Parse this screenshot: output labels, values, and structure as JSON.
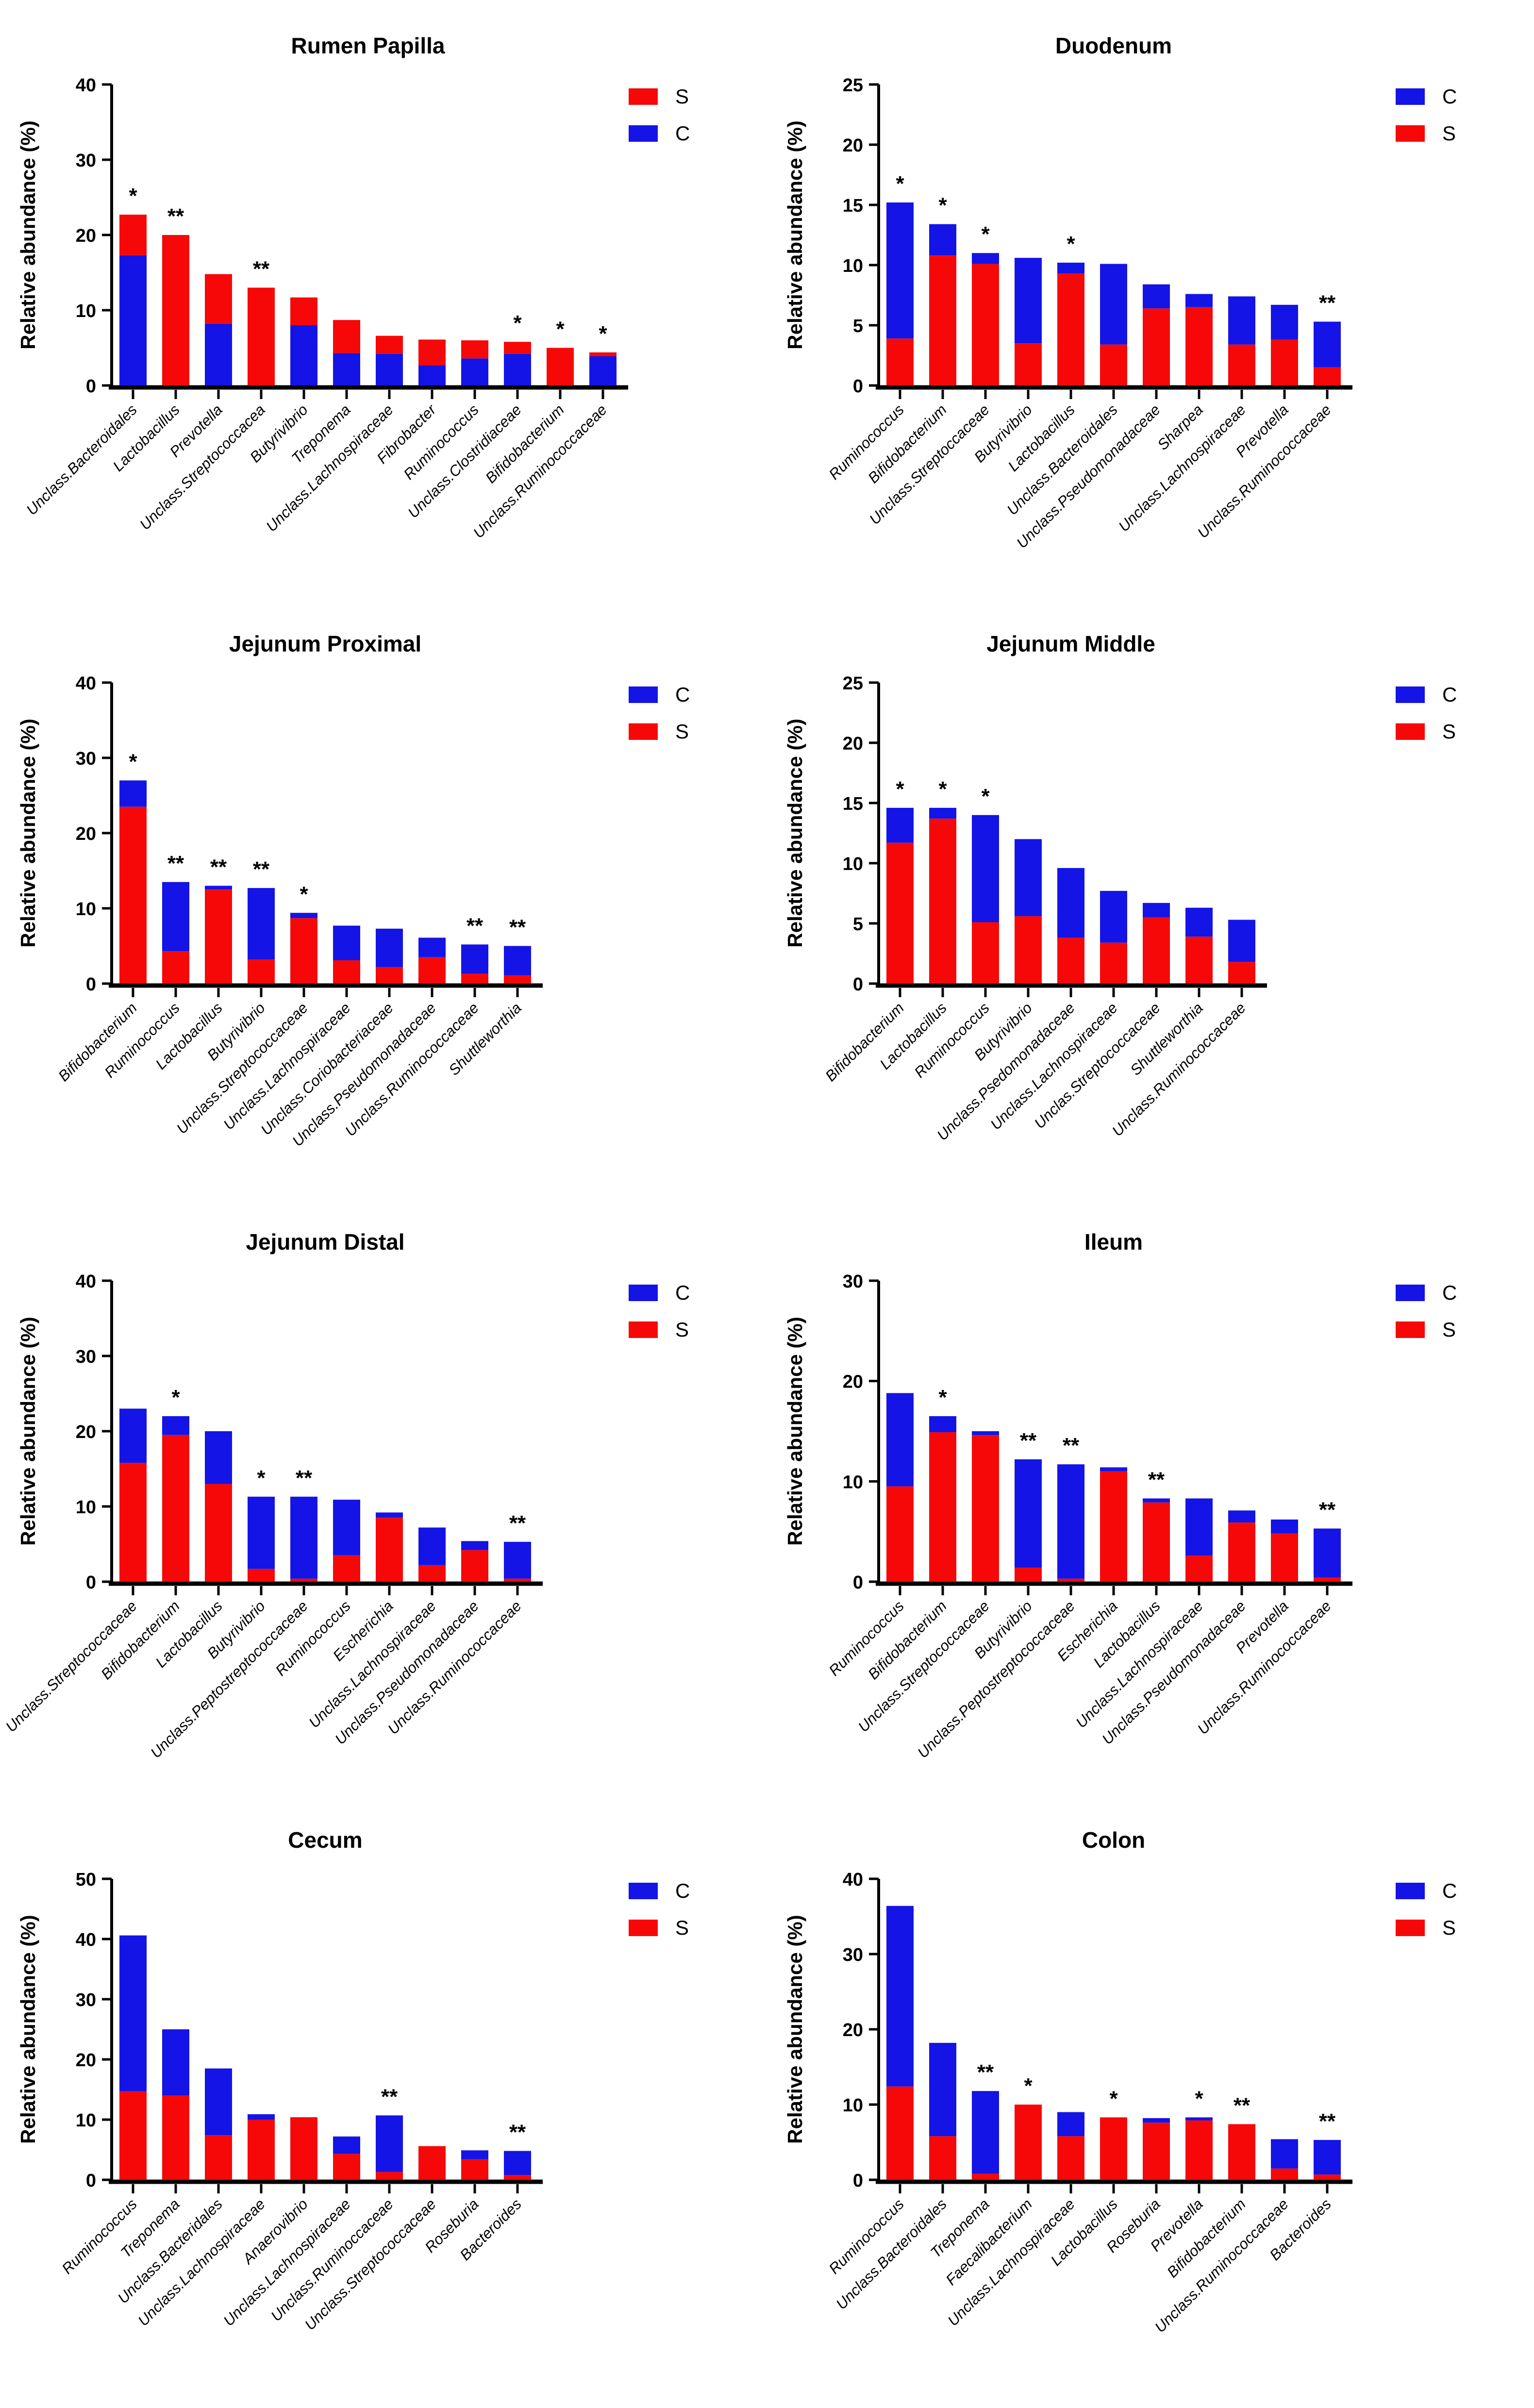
{
  "page": {
    "background": "#ffffff"
  },
  "colors": {
    "C": "#1414e6",
    "S": "#f70808",
    "axis": "#000000"
  },
  "chart_data": [
    {
      "type": "bar",
      "title": "Rumen Papilla",
      "ylabel": "Relative abundance (%)",
      "ylim": [
        0,
        40
      ],
      "yticks": [
        0,
        10,
        20,
        30,
        40
      ],
      "grid": false,
      "legend_position": "top-right",
      "legend": [
        "S",
        "C"
      ],
      "categories": [
        "Unclass.Bacteroidales",
        "Lactobacillus",
        "Prevotella",
        "Unclass.Streptococcacea",
        "Butyrivibrio",
        "Treponema",
        "Unclass.Lachnospiraceae",
        "Fibrobacter",
        "Ruminococcus",
        "Unclass.Clostridiaceae",
        "Bifidobacterium",
        "Unclass.Ruminococcaceae"
      ],
      "series": [
        {
          "name": "C",
          "values": [
            17.3,
            0,
            8.2,
            0,
            8.0,
            4.3,
            4.2,
            2.7,
            3.6,
            4.2,
            0,
            3.9
          ]
        },
        {
          "name": "S",
          "values": [
            5.4,
            20.0,
            6.6,
            13.0,
            3.7,
            4.4,
            2.4,
            3.4,
            2.4,
            1.6,
            5.0,
            0.5
          ]
        }
      ],
      "totals": [
        22.7,
        20.0,
        14.8,
        13.0,
        11.7,
        8.7,
        6.6,
        6.1,
        6.0,
        5.8,
        5.0,
        4.4
      ],
      "significance": [
        "*",
        "**",
        "",
        "**",
        "",
        "",
        "",
        "",
        "",
        "*",
        "*",
        "*"
      ]
    },
    {
      "type": "bar",
      "title": "Duodenum",
      "ylabel": "Relative abundance (%)",
      "ylim": [
        0,
        25
      ],
      "yticks": [
        0,
        5,
        10,
        15,
        20,
        25
      ],
      "grid": false,
      "legend_position": "top-right",
      "legend": [
        "C",
        "S"
      ],
      "categories": [
        "Ruminococcus",
        "Bifidobacterium",
        "Unclass.Streptoccaceae",
        "Butyrivibrio",
        "Lactobacillus",
        "Unclass.Bacteroidales",
        "Unclass.Pseudomonadaceae",
        "Sharpea",
        "Unclass.Lachnospiraceae",
        "Prevotella",
        "Unclass.Ruminococcaceae"
      ],
      "series": [
        {
          "name": "S",
          "values": [
            3.9,
            10.8,
            10.1,
            3.5,
            9.3,
            3.4,
            6.4,
            6.5,
            3.4,
            3.8,
            1.5
          ]
        },
        {
          "name": "C",
          "values": [
            11.3,
            2.6,
            0.9,
            7.1,
            0.9,
            6.7,
            2.0,
            1.1,
            4.0,
            2.9,
            3.8
          ]
        }
      ],
      "totals": [
        15.2,
        13.4,
        11.0,
        10.6,
        10.2,
        10.1,
        8.4,
        7.6,
        7.4,
        6.7,
        5.3
      ],
      "significance": [
        "*",
        "*",
        "*",
        "",
        "*",
        "",
        "",
        "",
        "",
        "",
        "**"
      ]
    },
    {
      "type": "bar",
      "title": "Jejunum Proximal",
      "ylabel": "Relative abundance (%)",
      "ylim": [
        0,
        40
      ],
      "yticks": [
        0,
        10,
        20,
        30,
        40
      ],
      "grid": false,
      "legend_position": "top-right",
      "legend": [
        "C",
        "S"
      ],
      "categories": [
        "Bifidobacterium",
        "Ruminococcus",
        "Lactobacillus",
        "Butyrivibrio",
        "Unclass.Streptococcaceae",
        "Unclass.Lachnospiraceae",
        "Unclass.Coriobacteriaceae",
        "Unclass.Pseudomonadaceae",
        "Unclass.Ruminococcaceae",
        "Shuttleworthia"
      ],
      "series": [
        {
          "name": "S",
          "values": [
            23.5,
            4.3,
            12.5,
            3.2,
            8.7,
            3.1,
            2.2,
            3.5,
            1.3,
            1.1
          ]
        },
        {
          "name": "C",
          "values": [
            3.5,
            9.2,
            0.5,
            9.5,
            0.7,
            4.6,
            5.1,
            2.6,
            3.9,
            3.9
          ]
        }
      ],
      "totals": [
        27.0,
        13.5,
        13.0,
        12.7,
        9.4,
        7.7,
        7.3,
        6.1,
        5.2,
        5.0
      ],
      "significance": [
        "*",
        "**",
        "**",
        "**",
        "*",
        "",
        "",
        "",
        "**",
        "**"
      ]
    },
    {
      "type": "bar",
      "title": "Jejunum Middle",
      "ylabel": "Relative abundance (%)",
      "ylim": [
        0,
        25
      ],
      "yticks": [
        0,
        5,
        10,
        15,
        20,
        25
      ],
      "grid": false,
      "legend_position": "top-right",
      "legend": [
        "C",
        "S"
      ],
      "categories": [
        "Bifidobacterium",
        "Lactobacillus",
        "Ruminococcus",
        "Butyrivibrio",
        "Unclass.Psedomonadaceae",
        "Unclass.Lachnospiraceae",
        "Unclas.Streptococcaceae",
        "Shuttleworthia",
        "Unclass.Ruminococcaceae"
      ],
      "series": [
        {
          "name": "S",
          "values": [
            11.7,
            13.7,
            5.1,
            5.6,
            3.8,
            3.4,
            5.5,
            3.9,
            1.8
          ]
        },
        {
          "name": "C",
          "values": [
            2.9,
            0.9,
            8.9,
            6.4,
            5.8,
            4.3,
            1.2,
            2.4,
            3.5
          ]
        }
      ],
      "totals": [
        14.6,
        14.6,
        14.0,
        12.0,
        9.6,
        7.7,
        6.7,
        6.3,
        5.3
      ],
      "significance": [
        "*",
        "*",
        "*",
        "",
        "",
        "",
        "",
        "",
        ""
      ]
    },
    {
      "type": "bar",
      "title": "Jejunum Distal",
      "ylabel": "Relative abundance (%)",
      "ylim": [
        0,
        40
      ],
      "yticks": [
        0,
        10,
        20,
        30,
        40
      ],
      "grid": false,
      "legend_position": "top-right",
      "legend": [
        "C",
        "S"
      ],
      "categories": [
        "Unclass.Streptococcaceae",
        "Bifidobacterium",
        "Lactobacillus",
        "Butyrivibrio",
        "Unclass.Peptostreptococcaceae",
        "Ruminococcus",
        "Escherichia",
        "Unclass.Lachnospiraceae",
        "Unclass.Pseudomonadaceae",
        "Unclass.Ruminococcaceae"
      ],
      "series": [
        {
          "name": "S",
          "values": [
            15.8,
            19.5,
            13.0,
            1.7,
            0.4,
            3.5,
            8.5,
            2.2,
            4.2,
            0.4
          ]
        },
        {
          "name": "C",
          "values": [
            7.2,
            2.5,
            7.0,
            9.6,
            10.9,
            7.4,
            0.7,
            5.0,
            1.2,
            4.9
          ]
        }
      ],
      "totals": [
        23.0,
        22.0,
        20.0,
        11.3,
        11.3,
        10.9,
        9.2,
        7.2,
        5.4,
        5.3
      ],
      "significance": [
        "",
        "*",
        "",
        "*",
        "**",
        "",
        "",
        "",
        "",
        "**"
      ]
    },
    {
      "type": "bar",
      "title": "Ileum",
      "ylabel": "Relative abundance (%)",
      "ylim": [
        0,
        30
      ],
      "yticks": [
        0,
        10,
        20,
        30
      ],
      "grid": false,
      "legend_position": "top-right",
      "legend": [
        "C",
        "S"
      ],
      "categories": [
        "Ruminococcus",
        "Bifidobacterium",
        "Unclass.Streptococcaceae",
        "Butyrivibrio",
        "Unclass.Peptostreptococcaceae",
        "Escherichia",
        "Lactobacillus",
        "Unclass.Lachnospiraceae",
        "Unclass.Pseudomonadaceae",
        "Prevotella",
        "Unclass.Ruminococcaceae"
      ],
      "series": [
        {
          "name": "S",
          "values": [
            9.5,
            14.9,
            14.6,
            1.4,
            0.3,
            11.0,
            7.9,
            2.6,
            5.9,
            4.8,
            0.4
          ]
        },
        {
          "name": "C",
          "values": [
            9.3,
            1.6,
            0.4,
            10.8,
            11.4,
            0.4,
            0.4,
            5.7,
            1.2,
            1.4,
            4.9
          ]
        }
      ],
      "totals": [
        18.8,
        16.5,
        15.0,
        12.2,
        11.7,
        11.4,
        8.3,
        8.3,
        7.1,
        6.2,
        5.3
      ],
      "significance": [
        "",
        "*",
        "",
        "**",
        "**",
        "",
        "**",
        "",
        "",
        "",
        "**"
      ]
    },
    {
      "type": "bar",
      "title": "Cecum",
      "ylabel": "Relative abundance (%)",
      "ylim": [
        0,
        50
      ],
      "yticks": [
        0,
        10,
        20,
        30,
        40,
        50
      ],
      "grid": false,
      "legend_position": "top-right",
      "legend": [
        "C",
        "S"
      ],
      "categories": [
        "Ruminococcus",
        "Treponema",
        "Unclass.Bacteridales",
        "Unclass.Lachnospiraceae",
        "Anaerovibrio",
        "Unclass.Lachnospiraceae",
        "Unclass.Ruminoccaceae",
        "Unclass.Streptococcaceae",
        "Roseburia",
        "Bacteroides"
      ],
      "series": [
        {
          "name": "S",
          "values": [
            14.7,
            14.0,
            7.4,
            10.0,
            10.4,
            4.3,
            1.3,
            5.6,
            3.4,
            0.8
          ]
        },
        {
          "name": "C",
          "values": [
            25.9,
            11.0,
            11.1,
            0.9,
            0,
            2.9,
            9.4,
            0,
            1.5,
            4.0
          ]
        }
      ],
      "totals": [
        40.6,
        25.0,
        18.5,
        10.9,
        10.4,
        7.2,
        10.7,
        5.6,
        4.9,
        4.8
      ],
      "significance": [
        "",
        "",
        "",
        "",
        "",
        "",
        "**",
        "",
        "",
        "**"
      ]
    },
    {
      "type": "bar",
      "title": "Colon",
      "ylabel": "Relative abundance (%)",
      "ylim": [
        0,
        40
      ],
      "yticks": [
        0,
        10,
        20,
        30,
        40
      ],
      "grid": false,
      "legend_position": "top-right",
      "legend": [
        "C",
        "S"
      ],
      "categories": [
        "Ruminococcus",
        "Unclass.Bacteroidales",
        "Treponema",
        "Faecalibacterium",
        "Unclass.Lachnospiraceae",
        "Lactobacillus",
        "Roseburia",
        "Prevotella",
        "Bifidobacterium",
        "Unclass.Ruminococcaceae",
        "Bacteroides"
      ],
      "series": [
        {
          "name": "S",
          "values": [
            12.4,
            5.8,
            0.8,
            10.0,
            5.8,
            8.3,
            7.6,
            7.9,
            7.4,
            1.5,
            0.7
          ]
        },
        {
          "name": "C",
          "values": [
            24.0,
            12.4,
            11.0,
            0,
            3.2,
            0,
            0.6,
            0.4,
            0,
            3.9,
            4.6
          ]
        }
      ],
      "totals": [
        36.4,
        18.2,
        11.8,
        10.0,
        9.0,
        8.3,
        8.2,
        8.3,
        7.4,
        5.4,
        5.3
      ],
      "significance": [
        "",
        "",
        "**",
        "*",
        "",
        "*",
        "",
        "*",
        "**",
        "",
        "**"
      ]
    }
  ]
}
